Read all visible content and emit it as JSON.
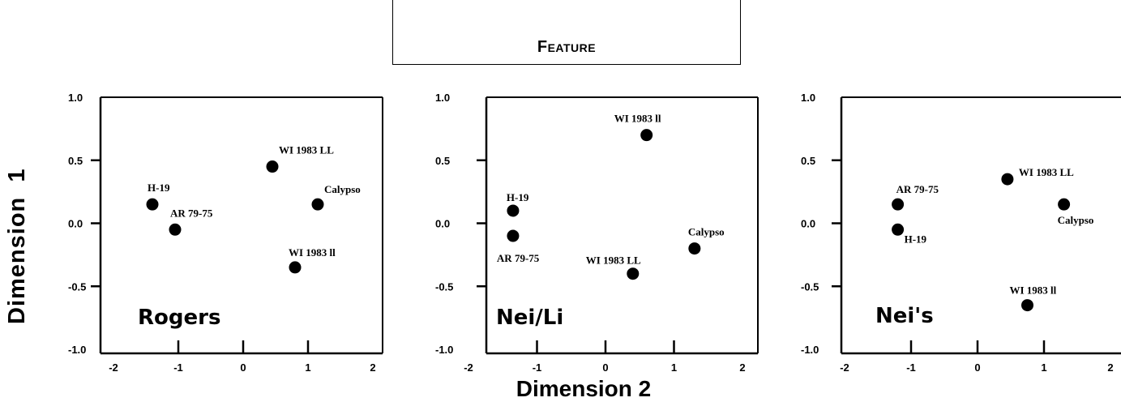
{
  "header": {
    "feature_label": "Feature"
  },
  "axes": {
    "ylabel": "Dimension  1",
    "xlabel": "Dimension 2"
  },
  "chart_data": [
    {
      "type": "scatter",
      "title": "Rogers",
      "xlim": [
        -2,
        2
      ],
      "ylim": [
        -1,
        1
      ],
      "xticks": [
        "-2",
        "-1",
        "0",
        "1",
        "2"
      ],
      "yticks": [
        "1.0",
        "0.5",
        "0.0",
        "-0.5",
        "-1.0"
      ],
      "points": [
        {
          "label": "H-19",
          "x": -1.4,
          "y": 0.15
        },
        {
          "label": "AR 79-75",
          "x": -1.05,
          "y": -0.05
        },
        {
          "label": "WI 1983 LL",
          "x": 0.45,
          "y": 0.45
        },
        {
          "label": "Calypso",
          "x": 1.15,
          "y": 0.15
        },
        {
          "label": "WI 1983 ll",
          "x": 0.8,
          "y": -0.35
        }
      ]
    },
    {
      "type": "scatter",
      "title": "Nei/Li",
      "xlim": [
        -2,
        2
      ],
      "ylim": [
        -1,
        1
      ],
      "xticks": [
        "-2",
        "-1",
        "0",
        "1",
        "2"
      ],
      "yticks": [
        "1.0",
        "0.5",
        "0.0",
        "-0.5",
        "-1.0"
      ],
      "points": [
        {
          "label": "WI 1983 ll",
          "x": 0.6,
          "y": 0.7
        },
        {
          "label": "H-19",
          "x": -1.35,
          "y": 0.1
        },
        {
          "label": "AR 79-75",
          "x": -1.35,
          "y": -0.1
        },
        {
          "label": "Calypso",
          "x": 1.3,
          "y": -0.2
        },
        {
          "label": "WI 1983 LL",
          "x": 0.4,
          "y": -0.4
        }
      ]
    },
    {
      "type": "scatter",
      "title": "Nei's",
      "xlim": [
        -2,
        2
      ],
      "ylim": [
        -1,
        1
      ],
      "xticks": [
        "-2",
        "-1",
        "0",
        "1",
        "2"
      ],
      "yticks": [
        "1.0",
        "0.5",
        "0.0",
        "-0.5",
        "-1.0"
      ],
      "points": [
        {
          "label": "AR 79-75",
          "x": -1.2,
          "y": 0.15
        },
        {
          "label": "H-19",
          "x": -1.2,
          "y": -0.05
        },
        {
          "label": "WI 1983 LL",
          "x": 0.45,
          "y": 0.35
        },
        {
          "label": "Calypso",
          "x": 1.3,
          "y": 0.15
        },
        {
          "label": "WI 1983 ll",
          "x": 0.75,
          "y": -0.65
        }
      ]
    }
  ]
}
